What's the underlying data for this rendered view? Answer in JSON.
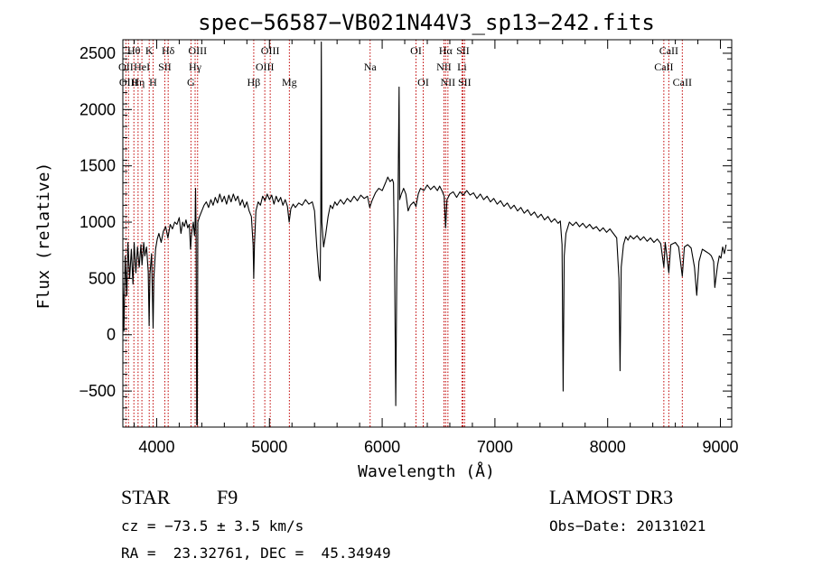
{
  "chart_data": {
    "type": "line",
    "title": "spec−56587−VB021N44V3_sp13−242.fits",
    "xlabel": "Wavelength (Å)",
    "ylabel": "Flux (relative)",
    "xlim": [
      3700,
      9100
    ],
    "ylim": [
      -820,
      2620
    ],
    "grid": false,
    "xticks": [
      {
        "v": 4000,
        "label": "4000"
      },
      {
        "v": 5000,
        "label": "5000"
      },
      {
        "v": 6000,
        "label": "6000"
      },
      {
        "v": 7000,
        "label": "7000"
      },
      {
        "v": 8000,
        "label": "8000"
      },
      {
        "v": 9000,
        "label": "9000"
      }
    ],
    "yticks": [
      {
        "v": -500,
        "label": "−500"
      },
      {
        "v": 0,
        "label": "0"
      },
      {
        "v": 500,
        "label": "500"
      },
      {
        "v": 1000,
        "label": "1000"
      },
      {
        "v": 1500,
        "label": "1500"
      },
      {
        "v": 2000,
        "label": "2000"
      },
      {
        "v": 2500,
        "label": "2500"
      }
    ],
    "line_color": "#000000",
    "marker_color": "#c00000",
    "spectrum": [
      [
        3700,
        500
      ],
      [
        3710,
        30
      ],
      [
        3720,
        700
      ],
      [
        3735,
        350
      ],
      [
        3745,
        820
      ],
      [
        3760,
        500
      ],
      [
        3775,
        760
      ],
      [
        3790,
        450
      ],
      [
        3800,
        820
      ],
      [
        3815,
        550
      ],
      [
        3830,
        780
      ],
      [
        3845,
        600
      ],
      [
        3860,
        800
      ],
      [
        3870,
        620
      ],
      [
        3885,
        820
      ],
      [
        3895,
        700
      ],
      [
        3910,
        780
      ],
      [
        3925,
        560
      ],
      [
        3933,
        80
      ],
      [
        3940,
        540
      ],
      [
        3955,
        720
      ],
      [
        3968,
        60
      ],
      [
        3975,
        500
      ],
      [
        3990,
        760
      ],
      [
        4005,
        850
      ],
      [
        4020,
        900
      ],
      [
        4040,
        820
      ],
      [
        4060,
        920
      ],
      [
        4080,
        960
      ],
      [
        4100,
        860
      ],
      [
        4120,
        980
      ],
      [
        4140,
        940
      ],
      [
        4160,
        1000
      ],
      [
        4180,
        980
      ],
      [
        4200,
        1040
      ],
      [
        4215,
        900
      ],
      [
        4230,
        1000
      ],
      [
        4245,
        960
      ],
      [
        4260,
        1020
      ],
      [
        4275,
        950
      ],
      [
        4290,
        980
      ],
      [
        4300,
        760
      ],
      [
        4310,
        900
      ],
      [
        4325,
        1000
      ],
      [
        4335,
        880
      ],
      [
        4340,
        960
      ],
      [
        4345,
        1300
      ],
      [
        4350,
        900
      ],
      [
        4355,
        -800
      ],
      [
        4360,
        -800
      ],
      [
        4365,
        1000
      ],
      [
        4380,
        1050
      ],
      [
        4400,
        1100
      ],
      [
        4420,
        1150
      ],
      [
        4440,
        1180
      ],
      [
        4460,
        1130
      ],
      [
        4480,
        1200
      ],
      [
        4500,
        1150
      ],
      [
        4520,
        1220
      ],
      [
        4540,
        1170
      ],
      [
        4560,
        1250
      ],
      [
        4580,
        1180
      ],
      [
        4600,
        1230
      ],
      [
        4620,
        1160
      ],
      [
        4640,
        1240
      ],
      [
        4660,
        1180
      ],
      [
        4680,
        1250
      ],
      [
        4700,
        1190
      ],
      [
        4720,
        1230
      ],
      [
        4740,
        1150
      ],
      [
        4760,
        1200
      ],
      [
        4780,
        1130
      ],
      [
        4800,
        1180
      ],
      [
        4820,
        1100
      ],
      [
        4840,
        1050
      ],
      [
        4855,
        800
      ],
      [
        4861,
        500
      ],
      [
        4867,
        800
      ],
      [
        4880,
        1100
      ],
      [
        4900,
        1180
      ],
      [
        4920,
        1150
      ],
      [
        4940,
        1230
      ],
      [
        4960,
        1190
      ],
      [
        4980,
        1250
      ],
      [
        5000,
        1200
      ],
      [
        5020,
        1240
      ],
      [
        5040,
        1160
      ],
      [
        5060,
        1230
      ],
      [
        5080,
        1180
      ],
      [
        5100,
        1220
      ],
      [
        5120,
        1150
      ],
      [
        5140,
        1200
      ],
      [
        5160,
        1140
      ],
      [
        5175,
        1000
      ],
      [
        5190,
        1120
      ],
      [
        5210,
        1160
      ],
      [
        5230,
        1130
      ],
      [
        5260,
        1170
      ],
      [
        5290,
        1150
      ],
      [
        5320,
        1200
      ],
      [
        5350,
        1160
      ],
      [
        5380,
        1180
      ],
      [
        5400,
        1100
      ],
      [
        5420,
        780
      ],
      [
        5440,
        520
      ],
      [
        5450,
        480
      ],
      [
        5455,
        1000
      ],
      [
        5460,
        2600
      ],
      [
        5465,
        1000
      ],
      [
        5480,
        780
      ],
      [
        5500,
        900
      ],
      [
        5520,
        1050
      ],
      [
        5540,
        1150
      ],
      [
        5560,
        1120
      ],
      [
        5580,
        1180
      ],
      [
        5600,
        1150
      ],
      [
        5630,
        1200
      ],
      [
        5660,
        1160
      ],
      [
        5690,
        1210
      ],
      [
        5720,
        1180
      ],
      [
        5750,
        1230
      ],
      [
        5780,
        1190
      ],
      [
        5810,
        1240
      ],
      [
        5840,
        1210
      ],
      [
        5870,
        1230
      ],
      [
        5890,
        1130
      ],
      [
        5910,
        1190
      ],
      [
        5940,
        1260
      ],
      [
        5970,
        1300
      ],
      [
        6000,
        1280
      ],
      [
        6030,
        1350
      ],
      [
        6050,
        1400
      ],
      [
        6070,
        1360
      ],
      [
        6090,
        1380
      ],
      [
        6100,
        1350
      ],
      [
        6110,
        650
      ],
      [
        6120,
        -630
      ],
      [
        6130,
        600
      ],
      [
        6140,
        1100
      ],
      [
        6150,
        2200
      ],
      [
        6155,
        1200
      ],
      [
        6170,
        1250
      ],
      [
        6190,
        1300
      ],
      [
        6210,
        1250
      ],
      [
        6230,
        1100
      ],
      [
        6250,
        1150
      ],
      [
        6280,
        1180
      ],
      [
        6300,
        1140
      ],
      [
        6320,
        1250
      ],
      [
        6340,
        1300
      ],
      [
        6370,
        1280
      ],
      [
        6400,
        1330
      ],
      [
        6430,
        1290
      ],
      [
        6460,
        1320
      ],
      [
        6490,
        1280
      ],
      [
        6510,
        1320
      ],
      [
        6530,
        1280
      ],
      [
        6550,
        1230
      ],
      [
        6563,
        950
      ],
      [
        6575,
        1200
      ],
      [
        6600,
        1250
      ],
      [
        6630,
        1270
      ],
      [
        6660,
        1220
      ],
      [
        6690,
        1270
      ],
      [
        6720,
        1240
      ],
      [
        6750,
        1280
      ],
      [
        6780,
        1240
      ],
      [
        6810,
        1260
      ],
      [
        6840,
        1210
      ],
      [
        6870,
        1250
      ],
      [
        6900,
        1200
      ],
      [
        6930,
        1230
      ],
      [
        6960,
        1180
      ],
      [
        6990,
        1210
      ],
      [
        7020,
        1160
      ],
      [
        7050,
        1190
      ],
      [
        7080,
        1140
      ],
      [
        7110,
        1170
      ],
      [
        7140,
        1120
      ],
      [
        7170,
        1150
      ],
      [
        7200,
        1100
      ],
      [
        7230,
        1130
      ],
      [
        7260,
        1080
      ],
      [
        7290,
        1110
      ],
      [
        7320,
        1060
      ],
      [
        7350,
        1090
      ],
      [
        7380,
        1040
      ],
      [
        7410,
        1070
      ],
      [
        7440,
        1020
      ],
      [
        7470,
        1050
      ],
      [
        7500,
        1000
      ],
      [
        7530,
        1030
      ],
      [
        7560,
        990
      ],
      [
        7580,
        1010
      ],
      [
        7595,
        800
      ],
      [
        7605,
        -500
      ],
      [
        7615,
        700
      ],
      [
        7630,
        900
      ],
      [
        7660,
        1000
      ],
      [
        7690,
        970
      ],
      [
        7720,
        1000
      ],
      [
        7750,
        960
      ],
      [
        7780,
        990
      ],
      [
        7810,
        950
      ],
      [
        7840,
        980
      ],
      [
        7870,
        940
      ],
      [
        7900,
        960
      ],
      [
        7930,
        920
      ],
      [
        7960,
        950
      ],
      [
        7990,
        910
      ],
      [
        8020,
        940
      ],
      [
        8050,
        900
      ],
      [
        8080,
        860
      ],
      [
        8100,
        500
      ],
      [
        8110,
        -320
      ],
      [
        8120,
        600
      ],
      [
        8140,
        800
      ],
      [
        8160,
        870
      ],
      [
        8180,
        840
      ],
      [
        8200,
        880
      ],
      [
        8230,
        850
      ],
      [
        8260,
        880
      ],
      [
        8290,
        840
      ],
      [
        8320,
        870
      ],
      [
        8350,
        830
      ],
      [
        8380,
        860
      ],
      [
        8410,
        820
      ],
      [
        8440,
        850
      ],
      [
        8470,
        810
      ],
      [
        8498,
        600
      ],
      [
        8510,
        820
      ],
      [
        8542,
        550
      ],
      [
        8560,
        800
      ],
      [
        8600,
        820
      ],
      [
        8630,
        780
      ],
      [
        8662,
        520
      ],
      [
        8680,
        780
      ],
      [
        8710,
        800
      ],
      [
        8740,
        770
      ],
      [
        8770,
        600
      ],
      [
        8790,
        350
      ],
      [
        8810,
        650
      ],
      [
        8840,
        760
      ],
      [
        8870,
        740
      ],
      [
        8900,
        720
      ],
      [
        8920,
        700
      ],
      [
        8940,
        650
      ],
      [
        8950,
        420
      ],
      [
        8960,
        500
      ],
      [
        8975,
        620
      ],
      [
        8990,
        700
      ],
      [
        9005,
        680
      ],
      [
        9020,
        780
      ],
      [
        9035,
        720
      ],
      [
        9050,
        800
      ]
    ],
    "line_markers": [
      {
        "x": 3727,
        "label": "OII",
        "row": 1
      },
      {
        "x": 3750,
        "label": "OIII",
        "row": 2
      },
      {
        "x": 3798,
        "label": "Hθ",
        "row": 0
      },
      {
        "x": 3835,
        "label": "Hη",
        "row": 2
      },
      {
        "x": 3869,
        "label": "HeI",
        "row": 1
      },
      {
        "x": 3934,
        "label": "K",
        "row": 0
      },
      {
        "x": 3968,
        "label": "H",
        "row": 2
      },
      {
        "x": 4072,
        "label": "SII",
        "row": 1
      },
      {
        "x": 4102,
        "label": "Hδ",
        "row": 0
      },
      {
        "x": 4304,
        "label": "G",
        "row": 2
      },
      {
        "x": 4341,
        "label": "Hγ",
        "row": 1
      },
      {
        "x": 4363,
        "label": "OIII",
        "row": 0
      },
      {
        "x": 4861,
        "label": "Hβ",
        "row": 2
      },
      {
        "x": 4959,
        "label": "OIII",
        "row": 1
      },
      {
        "x": 5007,
        "label": "OIII",
        "row": 0
      },
      {
        "x": 5177,
        "label": "Mg",
        "row": 2
      },
      {
        "x": 5893,
        "label": "Na",
        "row": 1
      },
      {
        "x": 6300,
        "label": "OI",
        "row": 0
      },
      {
        "x": 6364,
        "label": "OI",
        "row": 2
      },
      {
        "x": 6548,
        "label": "NII",
        "row": 1
      },
      {
        "x": 6563,
        "label": "Hα",
        "row": 0
      },
      {
        "x": 6583,
        "label": "NII",
        "row": 2
      },
      {
        "x": 6708,
        "label": "Li",
        "row": 1
      },
      {
        "x": 6716,
        "label": "SII",
        "row": 0
      },
      {
        "x": 6731,
        "label": "SII",
        "row": 2
      },
      {
        "x": 8498,
        "label": "CaII",
        "row": 1
      },
      {
        "x": 8542,
        "label": "CaII",
        "row": 0
      },
      {
        "x": 8662,
        "label": "CaII",
        "row": 2
      }
    ]
  },
  "info": {
    "class_label": "STAR",
    "subclass": "F9",
    "survey": "LAMOST DR3",
    "redshift": "cz = −73.5 ± 3.5 km/s",
    "obs_date": "Obs−Date: 20131021",
    "coords": "RA =  23.32761, DEC =  45.34949"
  }
}
